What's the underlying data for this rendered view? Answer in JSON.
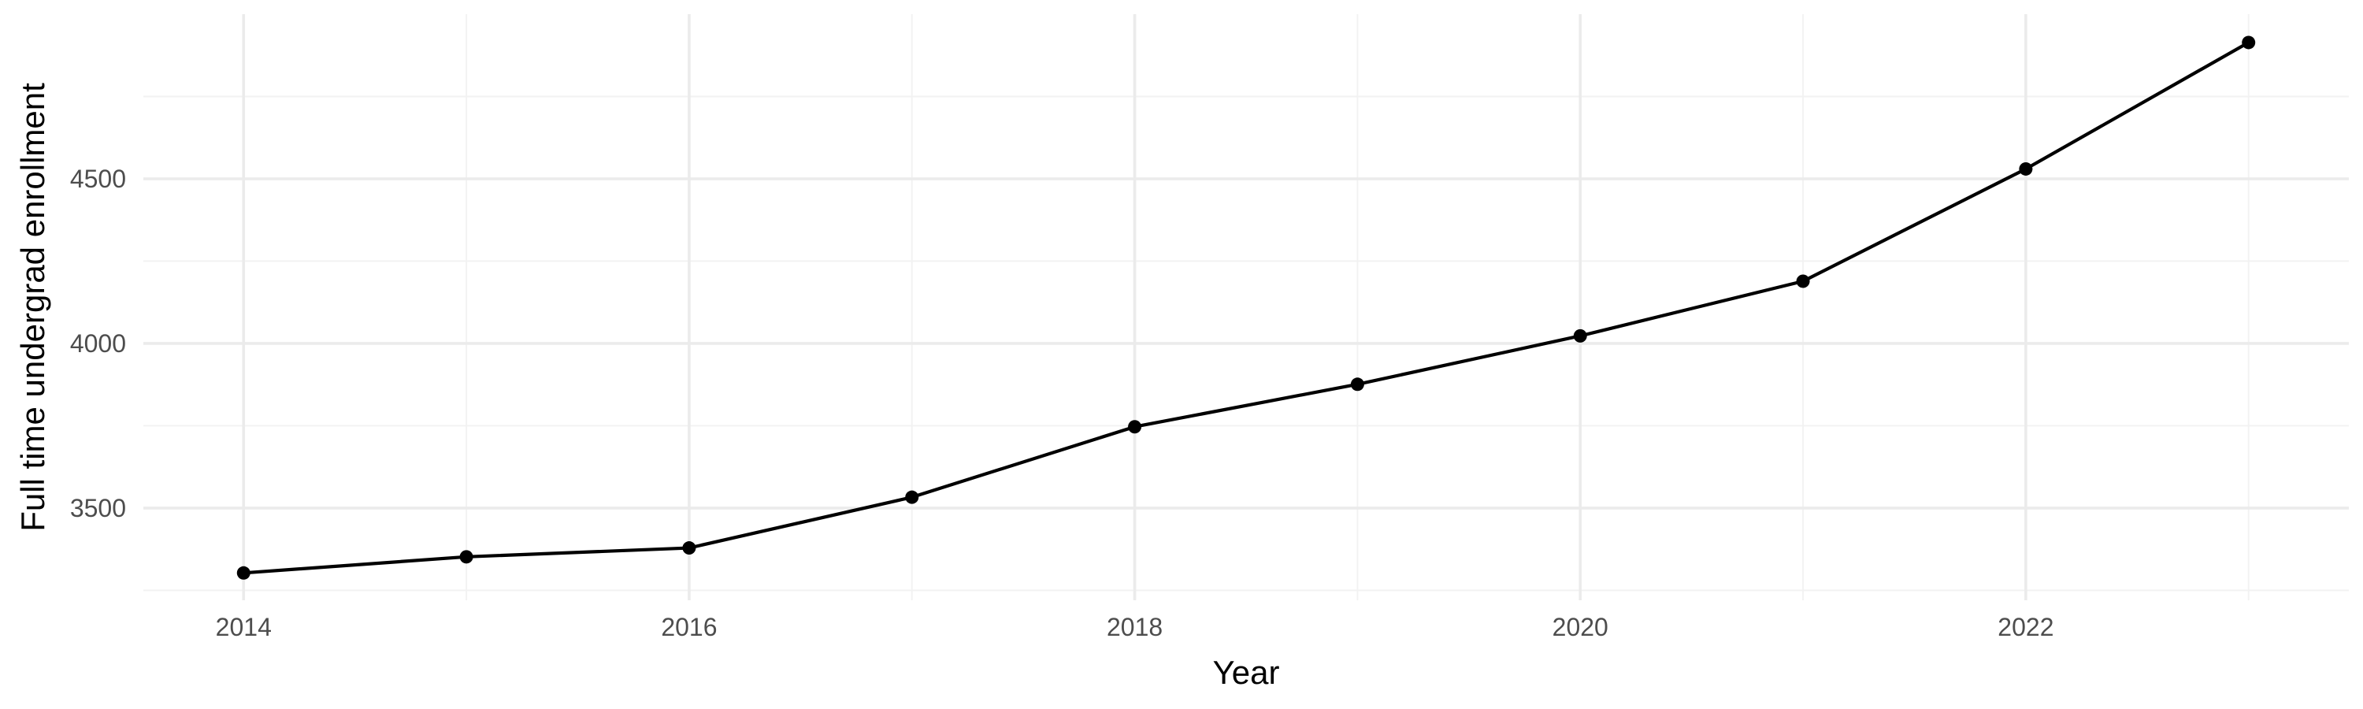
{
  "chart_data": {
    "type": "line",
    "title": "",
    "xlabel": "Year",
    "ylabel": "Full time undergrad enrollment",
    "x": [
      2014,
      2015,
      2016,
      2017,
      2018,
      2019,
      2020,
      2021,
      2022,
      2023
    ],
    "series": [
      {
        "values": [
          3303,
          3352,
          3379,
          3533,
          3747,
          3876,
          4023,
          4189,
          4530,
          4914
        ]
      }
    ],
    "xlim": [
      2013.55,
      2023.45
    ],
    "ylim": [
      3220,
      5000
    ],
    "x_ticks": [
      2014,
      2016,
      2018,
      2020,
      2022
    ],
    "x_minor_ticks": [
      2015,
      2017,
      2019,
      2021,
      2023
    ],
    "y_ticks": [
      3500,
      4000,
      4500
    ],
    "y_minor_ticks": [
      3250,
      3750,
      4250,
      4750
    ],
    "grid": true,
    "legend": "none",
    "line_color": "#000000",
    "grid_color": "#ebebeb"
  }
}
